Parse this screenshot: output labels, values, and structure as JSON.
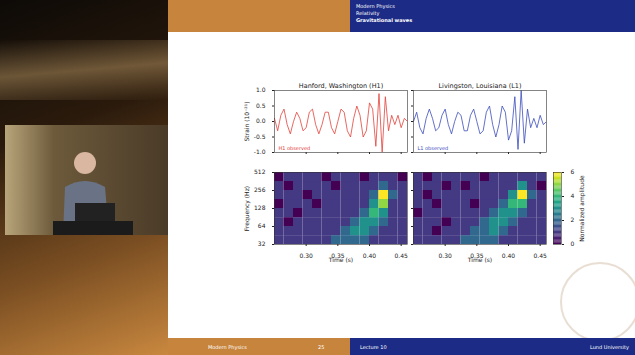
{
  "slide_header": {
    "lines": [
      "Modern Physics",
      "Relativity",
      "Gravitational waves"
    ]
  },
  "footer": {
    "left": "Modern Physics",
    "page": "25",
    "presenter": "Lecture 10",
    "right": "Lund University"
  },
  "chart_data": [
    {
      "type": "line",
      "title": "Hanford, Washington (H1)",
      "ylabel": "Strain (10⁻²¹)",
      "x": [
        0.25,
        0.255,
        0.26,
        0.265,
        0.27,
        0.275,
        0.28,
        0.285,
        0.29,
        0.295,
        0.3,
        0.305,
        0.31,
        0.315,
        0.32,
        0.325,
        0.33,
        0.335,
        0.34,
        0.345,
        0.35,
        0.355,
        0.36,
        0.365,
        0.37,
        0.375,
        0.38,
        0.385,
        0.39,
        0.395,
        0.4,
        0.405,
        0.41,
        0.415,
        0.42,
        0.425,
        0.43,
        0.435,
        0.44,
        0.445,
        0.45,
        0.455,
        0.46
      ],
      "series": [
        {
          "name": "H1 observed",
          "color": "#e2413a",
          "values": [
            0.1,
            -0.3,
            0.2,
            0.4,
            -0.1,
            -0.4,
            0.0,
            0.3,
            0.1,
            -0.3,
            -0.2,
            0.3,
            0.4,
            -0.1,
            -0.4,
            -0.1,
            0.3,
            0.3,
            -0.2,
            -0.4,
            0.0,
            0.4,
            0.3,
            -0.3,
            -0.5,
            0.1,
            0.5,
            0.2,
            -0.5,
            -0.3,
            0.6,
            0.4,
            -0.8,
            0.9,
            -1.0,
            0.8,
            -0.3,
            0.2,
            -0.1,
            0.2,
            -0.2,
            0.1,
            0.0
          ]
        }
      ],
      "xlim": [
        0.25,
        0.46
      ],
      "xticks": [
        {
          "value": 0.3,
          "label": "0.30"
        },
        {
          "value": 0.35,
          "label": "0.35"
        },
        {
          "value": 0.4,
          "label": "0.40"
        },
        {
          "value": 0.45,
          "label": "0.45"
        }
      ],
      "ylim": [
        -1.0,
        1.0
      ],
      "yticks": [
        {
          "value": -1,
          "label": "-1.0"
        },
        {
          "value": -0.5,
          "label": "-0.5"
        },
        {
          "value": 0,
          "label": "0.0"
        },
        {
          "value": 0.5,
          "label": "0.5"
        },
        {
          "value": 1,
          "label": "1.0"
        }
      ],
      "legend": "lower left",
      "tick_labels": "y"
    },
    {
      "type": "line",
      "title": "Livingston, Louisiana (L1)",
      "x": [
        0.25,
        0.255,
        0.26,
        0.265,
        0.27,
        0.275,
        0.28,
        0.285,
        0.29,
        0.295,
        0.3,
        0.305,
        0.31,
        0.315,
        0.32,
        0.325,
        0.33,
        0.335,
        0.34,
        0.345,
        0.35,
        0.355,
        0.36,
        0.365,
        0.37,
        0.375,
        0.38,
        0.385,
        0.39,
        0.395,
        0.4,
        0.405,
        0.41,
        0.415,
        0.42,
        0.425,
        0.43,
        0.435,
        0.44,
        0.445,
        0.45,
        0.455,
        0.46
      ],
      "series": [
        {
          "name": "L1 observed",
          "color": "#3b4dbd",
          "values": [
            0.0,
            0.3,
            -0.2,
            -0.4,
            0.1,
            0.4,
            0.1,
            -0.3,
            -0.2,
            0.2,
            0.4,
            -0.1,
            -0.4,
            0.0,
            0.3,
            0.2,
            -0.3,
            -0.3,
            0.2,
            0.4,
            0.0,
            -0.4,
            -0.3,
            0.3,
            0.5,
            -0.1,
            -0.5,
            -0.1,
            0.5,
            0.3,
            -0.6,
            -0.3,
            0.8,
            -0.9,
            1.0,
            -0.7,
            0.4,
            -0.2,
            0.1,
            -0.2,
            0.2,
            -0.1,
            0.0
          ]
        }
      ],
      "xlim": [
        0.25,
        0.46
      ],
      "xticks": [
        {
          "value": 0.3,
          "label": "0.30"
        },
        {
          "value": 0.35,
          "label": "0.35"
        },
        {
          "value": 0.4,
          "label": "0.40"
        },
        {
          "value": 0.45,
          "label": "0.45"
        }
      ],
      "ylim": [
        -1.0,
        1.0
      ],
      "yticks": [
        {
          "value": -1,
          "label": "-1.0"
        },
        {
          "value": -0.5,
          "label": "-0.5"
        },
        {
          "value": 0,
          "label": "0.0"
        },
        {
          "value": 0.5,
          "label": "0.5"
        },
        {
          "value": 1,
          "label": "1.0"
        }
      ],
      "legend": "lower left",
      "tick_labels": false
    },
    {
      "type": "heatmap",
      "xlabel": "Time (s)",
      "ylabel": "Frequency (Hz)",
      "color": "viridis",
      "log": "y",
      "time_edges": [
        0.25,
        0.265,
        0.28,
        0.295,
        0.31,
        0.325,
        0.34,
        0.355,
        0.37,
        0.385,
        0.4,
        0.415,
        0.43,
        0.445,
        0.46
      ],
      "frequency_edges": [
        32,
        45,
        64,
        90,
        128,
        181,
        256,
        362,
        512
      ],
      "cells": [
        [
          1,
          1,
          1,
          1,
          1,
          1,
          2,
          2,
          2,
          2,
          1,
          1,
          1,
          1
        ],
        [
          1,
          1,
          1,
          1,
          1,
          1,
          1,
          2,
          3,
          3,
          2,
          1,
          1,
          1
        ],
        [
          1,
          0,
          1,
          1,
          1,
          1,
          1,
          1,
          2,
          3,
          3,
          2,
          1,
          1
        ],
        [
          1,
          1,
          0,
          1,
          1,
          1,
          1,
          1,
          1,
          2,
          4,
          3,
          1,
          1
        ],
        [
          0,
          1,
          1,
          1,
          0,
          1,
          1,
          1,
          1,
          1,
          3,
          5,
          1,
          1
        ],
        [
          1,
          1,
          1,
          0,
          1,
          1,
          1,
          1,
          1,
          1,
          2,
          6,
          2,
          1
        ],
        [
          1,
          0,
          1,
          1,
          1,
          1,
          0,
          1,
          1,
          1,
          1,
          2,
          1,
          1
        ],
        [
          0,
          1,
          1,
          1,
          1,
          0,
          1,
          1,
          1,
          0,
          1,
          1,
          1,
          0
        ]
      ],
      "xlim": [
        0.25,
        0.46
      ],
      "xticks": [
        {
          "value": 0.3,
          "label": "0.30"
        },
        {
          "value": 0.35,
          "label": "0.35"
        },
        {
          "value": 0.4,
          "label": "0.40"
        },
        {
          "value": 0.45,
          "label": "0.45"
        }
      ],
      "ylim": [
        32,
        512
      ],
      "yticks": [
        32,
        64,
        128,
        256,
        512
      ],
      "tick_labels": true
    },
    {
      "type": "heatmap",
      "xlabel": "Time (s)",
      "color": "viridis",
      "log": "y",
      "time_edges": [
        0.25,
        0.265,
        0.28,
        0.295,
        0.31,
        0.325,
        0.34,
        0.355,
        0.37,
        0.385,
        0.4,
        0.415,
        0.43,
        0.445,
        0.46
      ],
      "frequency_edges": [
        32,
        45,
        64,
        90,
        128,
        181,
        256,
        362,
        512
      ],
      "cells": [
        [
          1,
          1,
          1,
          1,
          1,
          2,
          2,
          2,
          2,
          1,
          1,
          1,
          1,
          1
        ],
        [
          1,
          1,
          0,
          1,
          1,
          1,
          2,
          2,
          3,
          2,
          1,
          1,
          1,
          1
        ],
        [
          1,
          1,
          1,
          0,
          1,
          1,
          1,
          2,
          3,
          3,
          2,
          1,
          1,
          1
        ],
        [
          0,
          1,
          1,
          1,
          1,
          1,
          1,
          1,
          2,
          3,
          3,
          2,
          1,
          1
        ],
        [
          1,
          1,
          0,
          1,
          1,
          1,
          0,
          1,
          1,
          2,
          4,
          4,
          1,
          1
        ],
        [
          1,
          0,
          1,
          1,
          1,
          1,
          1,
          1,
          1,
          1,
          3,
          6,
          2,
          1
        ],
        [
          1,
          1,
          1,
          0,
          1,
          0,
          1,
          1,
          1,
          1,
          1,
          3,
          1,
          0
        ],
        [
          1,
          0,
          1,
          1,
          1,
          1,
          1,
          0,
          1,
          1,
          1,
          1,
          1,
          1
        ]
      ],
      "xlim": [
        0.25,
        0.46
      ],
      "xticks": [
        {
          "value": 0.3,
          "label": "0.30"
        },
        {
          "value": 0.35,
          "label": "0.35"
        },
        {
          "value": 0.4,
          "label": "0.40"
        },
        {
          "value": 0.45,
          "label": "0.45"
        }
      ],
      "ylim": [
        32,
        512
      ],
      "yticks": [
        32,
        64,
        128,
        256,
        512
      ],
      "tick_labels": "x",
      "colorbar": {
        "range": [
          0,
          6
        ],
        "ticks": [
          0,
          2,
          4,
          6
        ],
        "label": "Normalized amplitude"
      }
    }
  ]
}
